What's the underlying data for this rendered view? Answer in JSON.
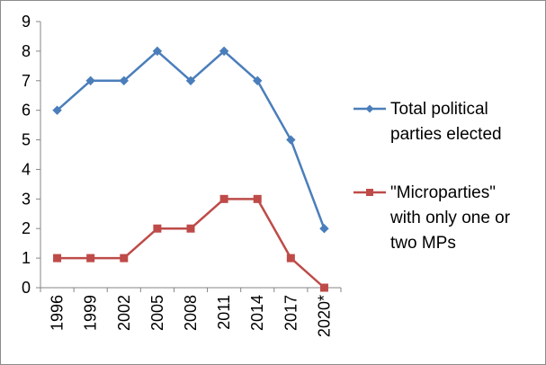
{
  "chart_data": {
    "type": "line",
    "categories": [
      "1996",
      "1999",
      "2002",
      "2005",
      "2008",
      "2011",
      "2014",
      "2017",
      "2020*"
    ],
    "ylim": [
      0,
      9
    ],
    "yticks": [
      0,
      1,
      2,
      3,
      4,
      5,
      6,
      7,
      8,
      9
    ],
    "grid": false,
    "legend_position": "right",
    "series": [
      {
        "name": "Total political parties elected",
        "legend_lines": [
          "Total political",
          "parties elected"
        ],
        "color": "#4a7ebb",
        "marker": "diamond",
        "values": [
          6,
          7,
          7,
          8,
          7,
          8,
          7,
          5,
          2
        ]
      },
      {
        "name": "\"Microparties\" with only one or two MPs",
        "legend_lines": [
          "\"Microparties\"",
          "with only one or",
          "two MPs"
        ],
        "color": "#be4b48",
        "marker": "square",
        "values": [
          1,
          1,
          1,
          2,
          2,
          3,
          3,
          1,
          0
        ]
      }
    ]
  }
}
